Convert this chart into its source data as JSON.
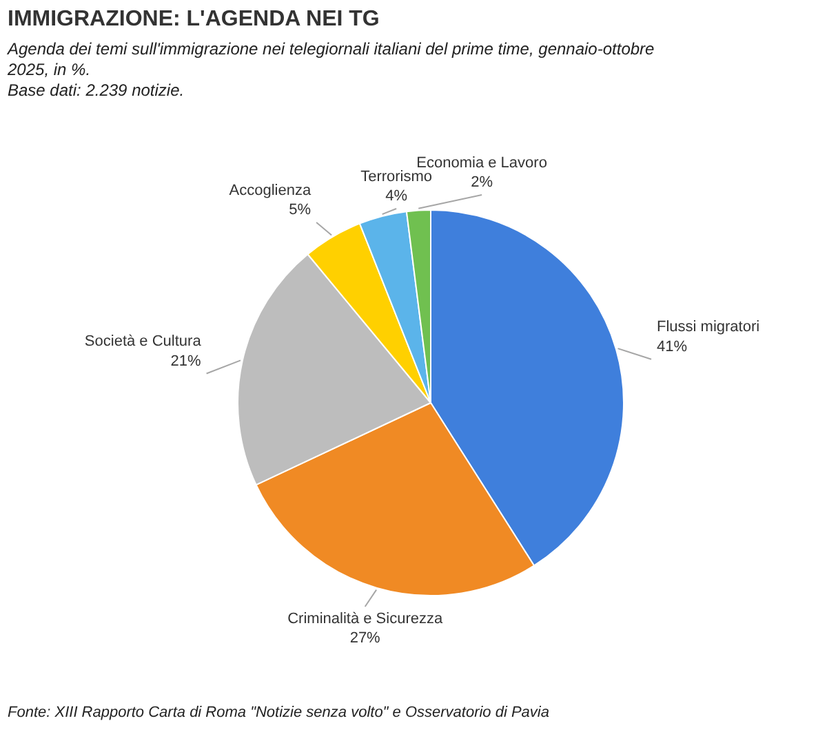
{
  "chart_data": {
    "type": "pie",
    "title": "IMMIGRAZIONE: L'AGENDA NEI TG",
    "subtitle": "Agenda dei temi sull'immigrazione nei telegiornali italiani del prime time, gennaio-ottobre 2025, in %.",
    "annotations": [
      "Base dati: 2.239 notizie.",
      "Fonte: XIII Rapporto Carta di Roma \"Notizie senza volto\" e Osservatorio di Pavia"
    ],
    "categories": [
      "Flussi migratori",
      "Criminalità e Sicurezza",
      "Società e Cultura",
      "Accoglienza",
      "Terrorismo",
      "Economia e Lavoro"
    ],
    "values": [
      41,
      27,
      21,
      5,
      4,
      2
    ],
    "colors": [
      "#3f7fdc",
      "#f08a24",
      "#bdbdbd",
      "#ffd000",
      "#5bb4ea",
      "#70c050"
    ],
    "value_labels": [
      "41%",
      "27%",
      "21%",
      "5%",
      "4%",
      "2%"
    ]
  }
}
